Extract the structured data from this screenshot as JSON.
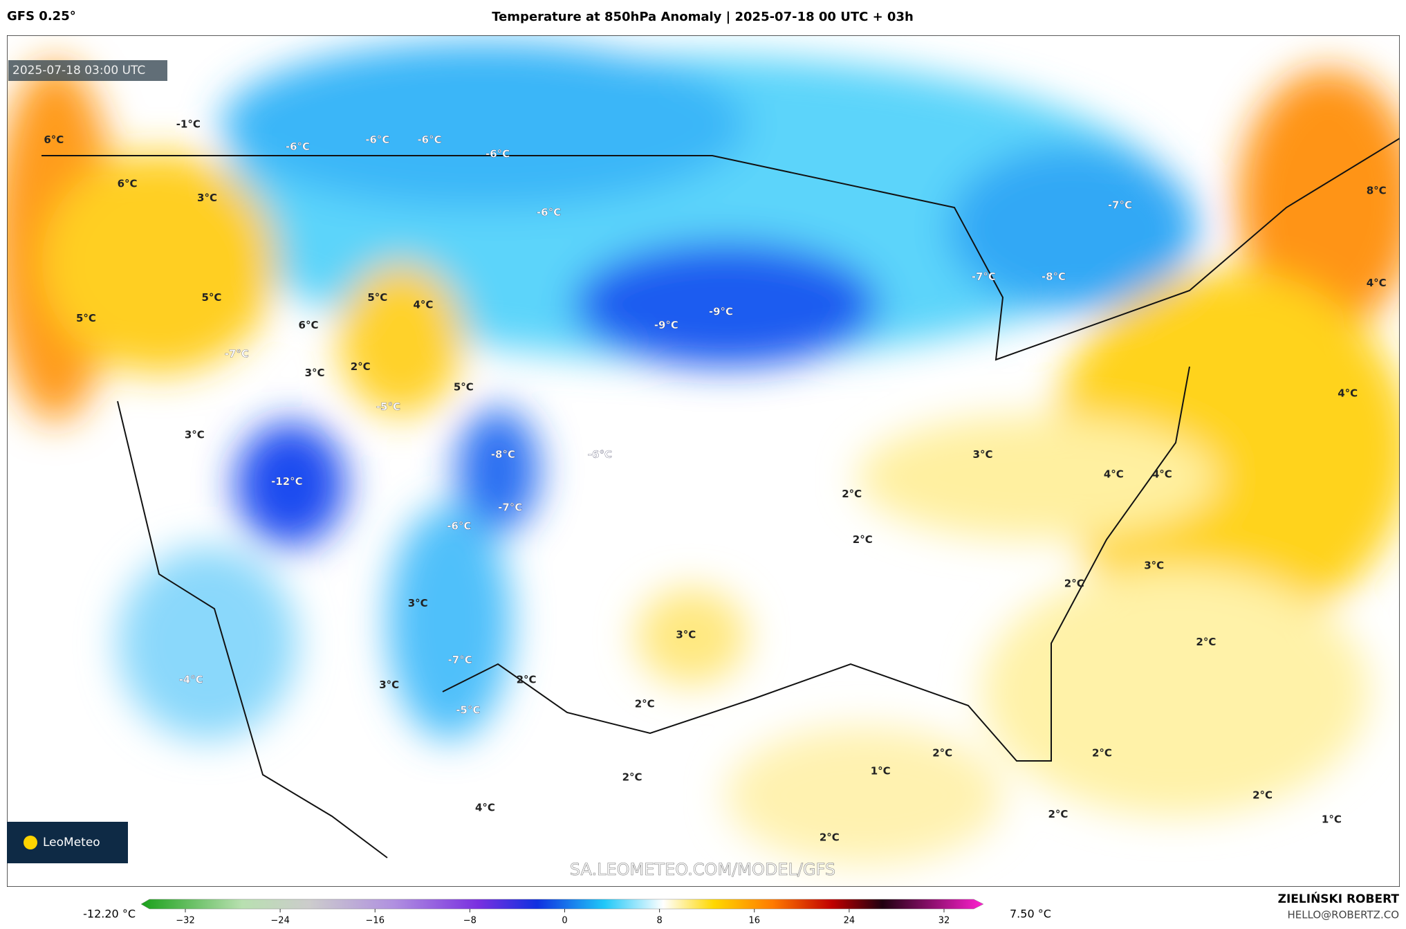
{
  "header": {
    "model": "GFS 0.25°",
    "title": "Temperature at 850hPa Anomaly | 2025-07-18 00 UTC + 03h"
  },
  "map": {
    "timestamp": "2025-07-18 03:00 UTC",
    "labels": [
      "-1°C",
      "6°C",
      "-6°C",
      "-6°C",
      "-6°C",
      "-6°C",
      "6°C",
      "3°C",
      "-6°C",
      "-7°C",
      "8°C",
      "5°C",
      "5°C",
      "4°C",
      "5°C",
      "6°C",
      "-9°C",
      "-9°C",
      "4°C",
      "-7°C",
      "-8°C",
      "-7°C",
      "3°C",
      "2°C",
      "5°C",
      "-5°C",
      "4°C",
      "3°C",
      "-8°C",
      "-6°C",
      "3°C",
      "-12°C",
      "4°C",
      "4°C",
      "2°C",
      "-7°C",
      "-6°C",
      "2°C",
      "3°C",
      "2°C",
      "3°C",
      "3°C",
      "2°C",
      "-7°C",
      "2°C",
      "-4°C",
      "3°C",
      "2°C",
      "-5°C",
      "2°C",
      "2°C",
      "1°C",
      "2°C",
      "2°C",
      "4°C",
      "2°C",
      "1°C",
      "2°C"
    ],
    "logo": "LeoMeteo",
    "watermark": "SA.LEOMETEO.COM/MODEL/GFS"
  },
  "colorbar": {
    "min_label": "-12.20 °C",
    "max_label": "7.50 °C",
    "ticks": [
      "−32",
      "−24",
      "−16",
      "−8",
      "0",
      "8",
      "16",
      "24",
      "32"
    ]
  },
  "footer": {
    "author": "ZIELIŃSKI ROBERT",
    "contact": "HELLO@ROBERTZ.CO"
  }
}
